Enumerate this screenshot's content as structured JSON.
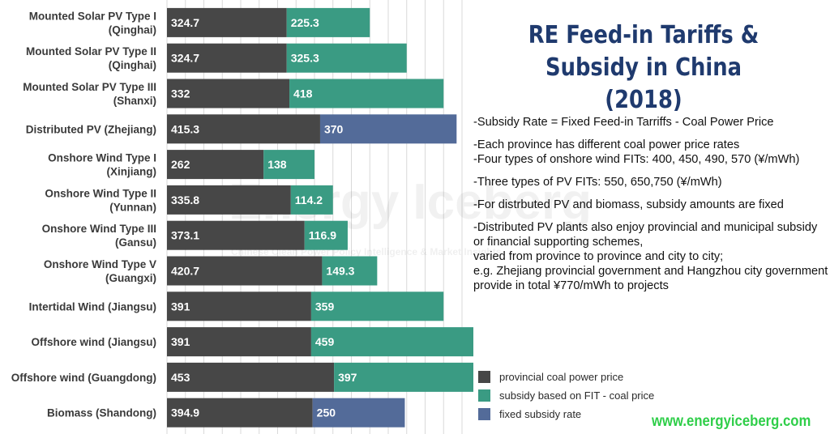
{
  "title": "RE Feed-in Tariffs & Subsidy in China (2018)",
  "notes": [
    "-Subsidy Rate = Fixed Feed-in Tarriffs - Coal Power Price",
    "-Each province has different coal power price rates",
    "-Four types of onshore wind FITs: 400, 450, 490, 570 (¥/mWh)",
    "-Three types of PV FITs: 550, 650,750 (¥/mWh)",
    "-For distrbuted PV and biomass, subsidy amounts are fixed",
    "-Distributed PV plants also enjoy provincial and municipal subsidy or financial supporting schemes,\nvaried from province to province and city to city;\ne.g. Zhejiang provincial government and Hangzhou city government provide in total ¥770/mWh to projects"
  ],
  "watermark": {
    "main": "Energy Iceberg",
    "sub": "Chinese Clean Power Policy Intelligence & Market Insights"
  },
  "website": "www.energyiceberg.com",
  "colors": {
    "coal": "#474747",
    "fit_subsidy": "#3a9b83",
    "fixed_subsidy": "#536b99",
    "title": "#1f3a6e",
    "website": "#2fce49"
  },
  "chart_data": {
    "type": "bar",
    "orientation": "horizontal",
    "stacked": true,
    "categories": [
      [
        "Mounted Solar PV Type I",
        "(Qinghai)"
      ],
      [
        "Mounted Solar PV Type II",
        "(Qinghai)"
      ],
      [
        "Mounted Solar PV Type III",
        "(Shanxi)"
      ],
      [
        "Distributed PV (Zhejiang)"
      ],
      [
        "Onshore Wind Type I",
        "(Xinjiang)"
      ],
      [
        "Onshore Wind Type II",
        "(Yunnan)"
      ],
      [
        "Onshore Wind Type III",
        "(Gansu)"
      ],
      [
        "Onshore Wind Type V",
        "(Guangxi)"
      ],
      [
        "Intertidal Wind (Jiangsu)"
      ],
      [
        "Offshore wind (Jiangsu)"
      ],
      [
        "Offshore wind (Guangdong)"
      ],
      [
        "Biomass (Shandong)"
      ]
    ],
    "series": [
      {
        "name": "provincial coal power price",
        "color": "#474747",
        "values": [
          324.7,
          324.7,
          332,
          415.3,
          262,
          335.8,
          373.1,
          420.7,
          391,
          391,
          453,
          394.9
        ]
      },
      {
        "name": "subsidy based on FIT - coal price",
        "color": "#3a9b83",
        "values": [
          225.3,
          325.3,
          418,
          null,
          138,
          114.2,
          116.9,
          149.3,
          359,
          459,
          397,
          null
        ]
      },
      {
        "name": "fixed subsidy rate",
        "color": "#536b99",
        "values": [
          null,
          null,
          null,
          370,
          null,
          null,
          null,
          null,
          null,
          null,
          null,
          250
        ]
      }
    ],
    "xlim": [
      0,
      850
    ],
    "grid": true,
    "legend_position": "bottom-right"
  }
}
